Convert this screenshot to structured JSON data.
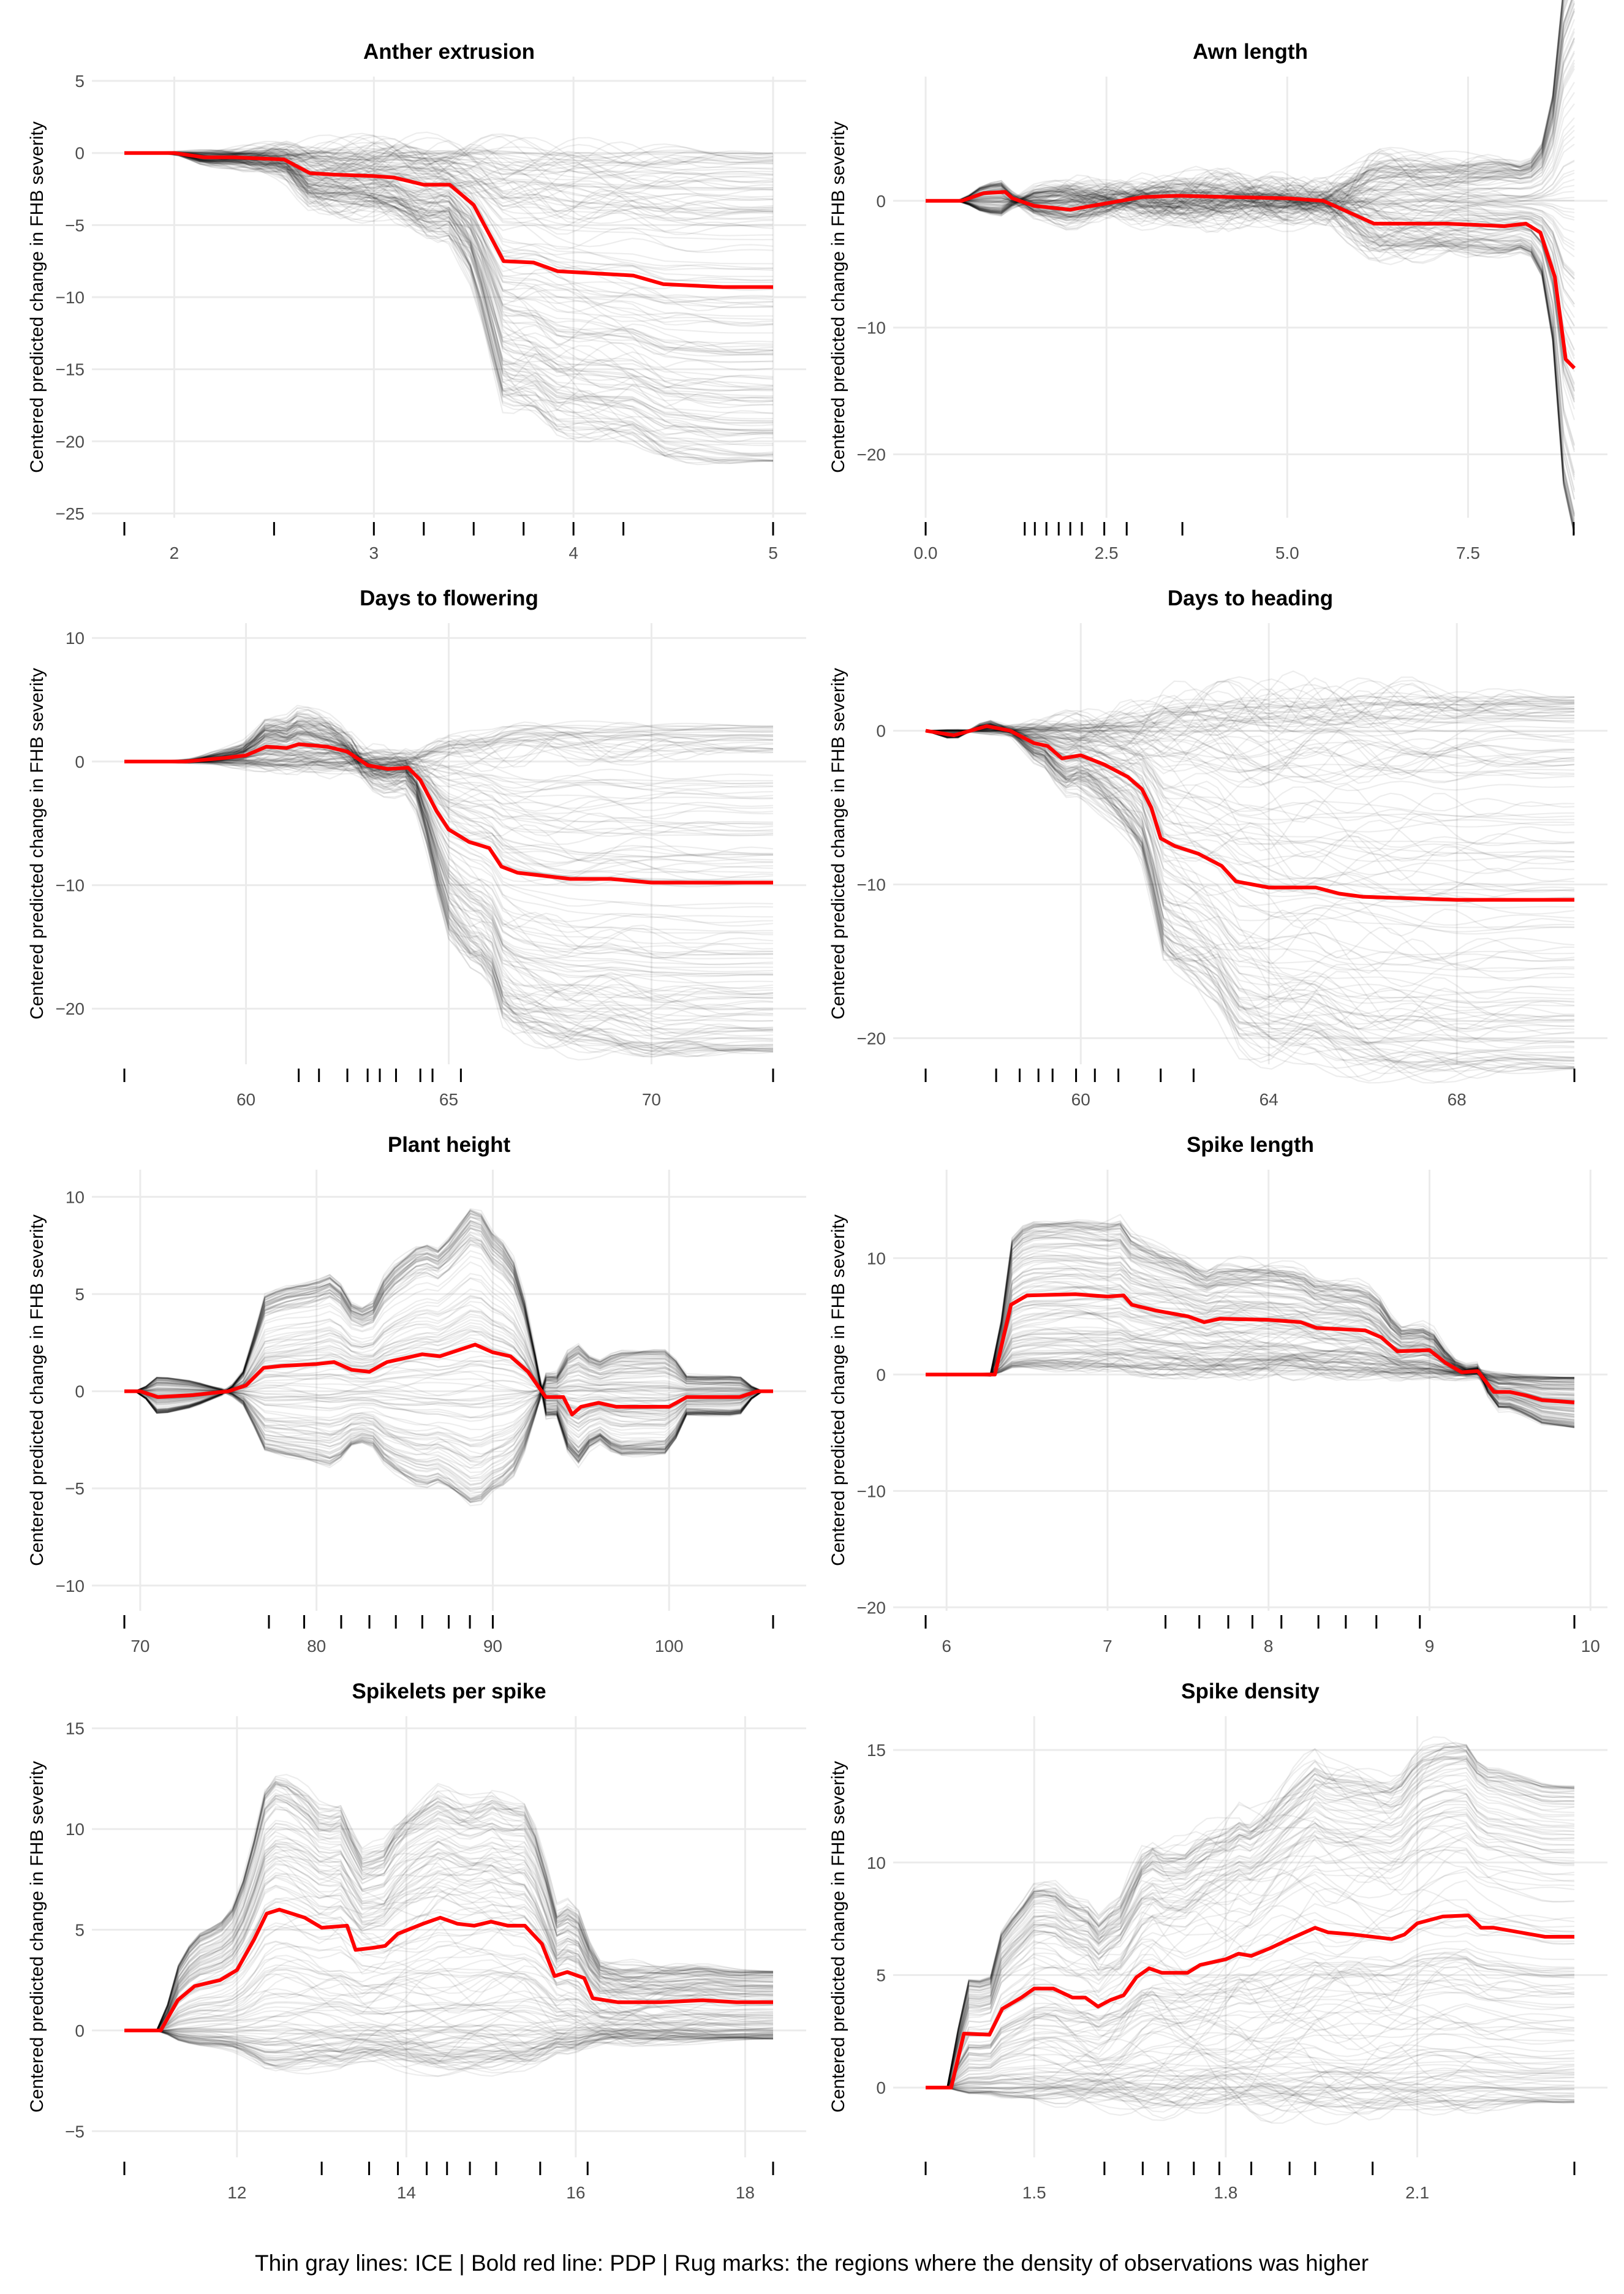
{
  "footer": "Thin gray lines: ICE | Bold red line: PDP | Rug marks: the regions where the density of observations was higher",
  "colors": {
    "pdp": "#ff0000",
    "ice": "#000000",
    "grid": "#ebebeb",
    "rug": "#000000"
  },
  "chart_data": [
    {
      "type": "line",
      "title": "Anther extrusion",
      "ylabel": "Centered predicted change in FHB severity",
      "xlim": [
        1.75,
        5
      ],
      "ylim": [
        -25.3,
        5.3
      ],
      "xticks": [
        2,
        3,
        4,
        5
      ],
      "xtick_labels": [
        "2",
        "3",
        "4",
        "5"
      ],
      "yticks": [
        -25,
        -20,
        -15,
        -10,
        -5,
        0,
        5
      ],
      "ytick_labels": [
        "−25",
        "−20",
        "−15",
        "−10",
        "−5",
        "0",
        "5"
      ],
      "ice_spread": [
        0,
        2.3
      ],
      "pdp": {
        "x": [
          1.75,
          2,
          2.15,
          2.3,
          2.55,
          2.68,
          2.8,
          3,
          3.1,
          3.25,
          3.38,
          3.5,
          3.65,
          3.8,
          3.92,
          4.3,
          4.45,
          4.75,
          5
        ],
        "y": [
          0,
          0,
          -0.3,
          -0.3,
          -0.45,
          -1.4,
          -1.5,
          -1.6,
          -1.7,
          -2.2,
          -2.2,
          -3.6,
          -7.5,
          -7.6,
          -8.2,
          -8.5,
          -9.1,
          -9.3,
          -9.3
        ]
      },
      "rug": [
        1.75,
        2.5,
        3,
        3.25,
        3.5,
        3.75,
        4,
        4.25,
        5
      ]
    },
    {
      "type": "line",
      "title": "Awn length",
      "ylabel": "Centered predicted change in FHB severity",
      "xlim": [
        0,
        8.97
      ],
      "ylim": [
        -25,
        9.8
      ],
      "xticks": [
        0,
        2.5,
        5,
        7.5
      ],
      "xtick_labels": [
        "0.0",
        "2.5",
        "5.0",
        "7.5"
      ],
      "yticks": [
        -20,
        -10,
        0
      ],
      "ytick_labels": [
        "−20",
        "−10",
        "0"
      ],
      "ice_spread": [
        -1.5,
        2.0
      ],
      "pdp": {
        "x": [
          0,
          0.5,
          0.8,
          1.1,
          1.2,
          1.5,
          2,
          2.3,
          3,
          3.5,
          4.2,
          5,
          5.5,
          6.2,
          7.2,
          8,
          8.3,
          8.5,
          8.7,
          8.85,
          8.97
        ],
        "y": [
          0,
          0,
          0.6,
          0.7,
          0.2,
          -0.4,
          -0.7,
          -0.4,
          0.3,
          0.4,
          0.3,
          0.2,
          0,
          -1.8,
          -1.8,
          -2,
          -1.8,
          -2.5,
          -6,
          -12.5,
          -13.2
        ]
      },
      "rug": [
        0,
        1.37,
        1.51,
        1.67,
        1.84,
        2.0,
        2.16,
        2.47,
        2.78,
        3.55,
        8.96
      ]
    },
    {
      "type": "line",
      "title": "Days to flowering",
      "ylabel": "Centered predicted change in FHB severity",
      "xlim": [
        57,
        73
      ],
      "ylim": [
        -24.5,
        11.2
      ],
      "xticks": [
        60,
        65,
        70
      ],
      "xtick_labels": [
        "60",
        "65",
        "70"
      ],
      "yticks": [
        -20,
        -10,
        0,
        10
      ],
      "ytick_labels": [
        "−20",
        "−10",
        "0",
        "10"
      ],
      "ice_spread": [
        -0.3,
        2.4
      ],
      "pdp": {
        "x": [
          57,
          58.5,
          59.5,
          60,
          60.5,
          61,
          61.3,
          62,
          62.5,
          63,
          63.5,
          64,
          64.3,
          64.7,
          65,
          65.5,
          66,
          66.3,
          66.7,
          68,
          69,
          70,
          73
        ],
        "y": [
          0,
          0,
          0.3,
          0.5,
          1.2,
          1.1,
          1.4,
          1.2,
          0.8,
          -0.3,
          -0.6,
          -0.5,
          -1.5,
          -4,
          -5.5,
          -6.5,
          -7,
          -8.5,
          -9,
          -9.5,
          -9.5,
          -9.8,
          -9.8
        ]
      },
      "rug": [
        57,
        61.3,
        61.8,
        62.5,
        63,
        63.3,
        63.7,
        64.3,
        64.6,
        65.3,
        73
      ]
    },
    {
      "type": "line",
      "title": "Days to heading",
      "ylabel": "Centered predicted change in FHB severity",
      "xlim": [
        56.7,
        70.5
      ],
      "ylim": [
        -21.7,
        7.0
      ],
      "xticks": [
        60,
        64,
        68
      ],
      "xtick_labels": [
        "60",
        "64",
        "68"
      ],
      "yticks": [
        -20,
        -10,
        0
      ],
      "ytick_labels": [
        "−20",
        "−10",
        "0"
      ],
      "ice_spread": [
        -0.2,
        2.0
      ],
      "pdp": {
        "x": [
          56.7,
          57.3,
          58,
          58.5,
          59,
          59.3,
          59.6,
          60,
          60.5,
          61,
          61.3,
          61.5,
          61.7,
          62,
          62.5,
          63,
          63.3,
          64,
          65,
          65.5,
          66,
          68,
          70.5
        ],
        "y": [
          0,
          -0.3,
          0.3,
          0,
          -0.8,
          -1,
          -1.8,
          -1.6,
          -2.2,
          -3,
          -3.8,
          -5,
          -7,
          -7.5,
          -8,
          -8.8,
          -9.8,
          -10.2,
          -10.2,
          -10.6,
          -10.8,
          -11,
          -11
        ]
      },
      "rug": [
        56.7,
        58.2,
        58.7,
        59.1,
        59.4,
        59.9,
        60.3,
        60.8,
        61.7,
        62.4,
        70.5
      ]
    },
    {
      "type": "line",
      "title": "Plant height",
      "ylabel": "Centered predicted change in FHB severity",
      "xlim": [
        69.1,
        105.9
      ],
      "ylim": [
        -11.3,
        11.4
      ],
      "xticks": [
        70,
        80,
        90,
        100
      ],
      "xtick_labels": [
        "70",
        "80",
        "90",
        "100"
      ],
      "yticks": [
        -10,
        -5,
        0,
        5,
        10
      ],
      "ytick_labels": [
        "−10",
        "−5",
        "0",
        "5",
        "10"
      ],
      "ice_spread": [
        -2.5,
        4.0
      ],
      "pdp": {
        "x": [
          69.1,
          70,
          71,
          73,
          75,
          76,
          77,
          78,
          80,
          81,
          82,
          83,
          84,
          86,
          87,
          88,
          89,
          90,
          91,
          92,
          93,
          94,
          94.5,
          95,
          96,
          97,
          100,
          101,
          104,
          105,
          105.9
        ],
        "y": [
          0,
          0,
          -0.3,
          -0.2,
          0,
          0.3,
          1.2,
          1.3,
          1.4,
          1.5,
          1.1,
          1.0,
          1.5,
          1.9,
          1.8,
          2.1,
          2.4,
          2.0,
          1.8,
          1.0,
          -0.3,
          -0.3,
          -1.2,
          -0.8,
          -0.6,
          -0.8,
          -0.8,
          -0.3,
          -0.3,
          0,
          0
        ]
      },
      "rug": [
        69.1,
        77.3,
        79.3,
        81.4,
        83.0,
        84.5,
        86.0,
        87.5,
        88.7,
        90,
        105.9
      ]
    },
    {
      "type": "line",
      "title": "Spike length",
      "ylabel": "Centered predicted change in FHB severity",
      "xlim": [
        5.87,
        9.9
      ],
      "ylim": [
        -20.3,
        17.6
      ],
      "xticks": [
        6,
        7,
        8,
        9,
        10
      ],
      "xtick_labels": [
        "6",
        "7",
        "8",
        "9",
        "10"
      ],
      "yticks": [
        -20,
        -10,
        0,
        10
      ],
      "ytick_labels": [
        "−20",
        "−10",
        "0",
        "10"
      ],
      "ice_spread": [
        0.1,
        1.9
      ],
      "pdp": {
        "x": [
          5.87,
          6.3,
          6.4,
          6.5,
          6.8,
          7,
          7.1,
          7.15,
          7.3,
          7.5,
          7.6,
          7.7,
          8,
          8.2,
          8.3,
          8.6,
          8.7,
          8.8,
          9,
          9.1,
          9.2,
          9.3,
          9.4,
          9.5,
          9.6,
          9.7,
          9.9
        ],
        "y": [
          0,
          0,
          6,
          6.8,
          6.9,
          6.7,
          6.8,
          6,
          5.5,
          5,
          4.5,
          4.8,
          4.7,
          4.5,
          4,
          3.8,
          3.2,
          2.0,
          2.1,
          1,
          0.2,
          0.3,
          -1.5,
          -1.5,
          -1.8,
          -2.2,
          -2.4
        ]
      },
      "rug": [
        5.87,
        7.36,
        7.57,
        7.75,
        7.9,
        8.08,
        8.31,
        8.48,
        8.67,
        8.94,
        9.9
      ]
    },
    {
      "type": "line",
      "title": "Spikelets per spike",
      "ylabel": "Centered predicted change in FHB severity",
      "xlim": [
        10.67,
        18.33
      ],
      "ylim": [
        -6.3,
        15.6
      ],
      "xticks": [
        12,
        14,
        16,
        18
      ],
      "xtick_labels": [
        "12",
        "14",
        "16",
        "18"
      ],
      "yticks": [
        -5,
        0,
        5,
        10,
        15
      ],
      "ytick_labels": [
        "−5",
        "0",
        "5",
        "10",
        "15"
      ],
      "ice_spread": [
        -0.3,
        2.1
      ],
      "pdp": {
        "x": [
          10.67,
          11.1,
          11.3,
          11.5,
          11.8,
          12,
          12.2,
          12.35,
          12.5,
          12.8,
          13,
          13.3,
          13.4,
          13.6,
          13.75,
          13.9,
          14.2,
          14.4,
          14.6,
          14.8,
          15,
          15.2,
          15.4,
          15.6,
          15.75,
          15.9,
          16.1,
          16.2,
          16.5,
          17,
          17.5,
          17.9,
          18.33
        ],
        "y": [
          0,
          0,
          1.5,
          2.2,
          2.5,
          3,
          4.5,
          5.8,
          6,
          5.6,
          5.1,
          5.2,
          4,
          4.1,
          4.2,
          4.8,
          5.3,
          5.6,
          5.3,
          5.2,
          5.4,
          5.2,
          5.2,
          4.3,
          2.7,
          2.9,
          2.6,
          1.6,
          1.4,
          1.4,
          1.5,
          1.4,
          1.4
        ]
      },
      "rug": [
        10.67,
        13.0,
        13.56,
        13.9,
        14.24,
        14.48,
        14.75,
        15.06,
        15.58,
        16.14,
        18.33
      ]
    },
    {
      "type": "line",
      "title": "Spike density",
      "ylabel": "Centered predicted change in FHB severity",
      "xlim": [
        1.33,
        2.346
      ],
      "ylim": [
        -3.1,
        16.5
      ],
      "xticks": [
        1.5,
        1.8,
        2.1
      ],
      "xtick_labels": [
        "1.5",
        "1.8",
        "2.1"
      ],
      "yticks": [
        0,
        5,
        10,
        15
      ],
      "ytick_labels": [
        "0",
        "5",
        "10",
        "15"
      ],
      "ice_spread": [
        -0.1,
        2.0
      ],
      "pdp": {
        "x": [
          1.33,
          1.37,
          1.39,
          1.43,
          1.45,
          1.48,
          1.5,
          1.53,
          1.56,
          1.58,
          1.6,
          1.62,
          1.64,
          1.66,
          1.68,
          1.7,
          1.74,
          1.76,
          1.8,
          1.82,
          1.84,
          1.87,
          1.9,
          1.94,
          1.96,
          2.0,
          2.06,
          2.08,
          2.1,
          2.14,
          2.18,
          2.2,
          2.22,
          2.28,
          2.3,
          2.346
        ],
        "y": [
          0,
          0,
          2.4,
          2.35,
          3.5,
          4.0,
          4.4,
          4.4,
          4.0,
          4.0,
          3.6,
          3.9,
          4.1,
          4.9,
          5.3,
          5.1,
          5.1,
          5.45,
          5.7,
          5.95,
          5.85,
          6.2,
          6.6,
          7.1,
          6.9,
          6.8,
          6.6,
          6.8,
          7.3,
          7.6,
          7.65,
          7.1,
          7.1,
          6.8,
          6.7,
          6.7
        ]
      },
      "rug": [
        1.33,
        1.61,
        1.67,
        1.71,
        1.75,
        1.79,
        1.84,
        1.9,
        1.94,
        2.03,
        2.346
      ]
    }
  ]
}
